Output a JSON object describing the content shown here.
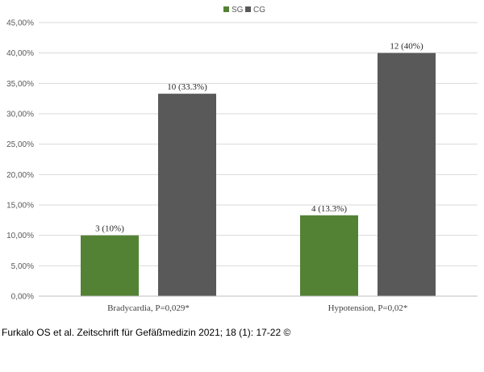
{
  "chart_data": {
    "type": "bar",
    "categories": [
      "Bradycardia, P=0,029*",
      "Hypotension, P=0,02*"
    ],
    "series": [
      {
        "name": "SG",
        "color": "#548235",
        "values": [
          10,
          13.3
        ],
        "labels": [
          "3 (10%)",
          "4 (13.3%)"
        ]
      },
      {
        "name": "CG",
        "color": "#595959",
        "values": [
          33.3,
          40
        ],
        "labels": [
          "10 (33.3%)",
          "12 (40%)"
        ]
      }
    ],
    "ylim": [
      0,
      45
    ],
    "yticks": [
      "0,00%",
      "5,00%",
      "10,00%",
      "15,00%",
      "20,00%",
      "25,00%",
      "30,00%",
      "35,00%",
      "40,00%",
      "45,00%"
    ],
    "grid": true,
    "legend": "top-center",
    "title": "",
    "xlabel": "",
    "ylabel": ""
  },
  "citation": "Furkalo OS et al. Zeitschrift für Gefäßmedizin 2021; 18 (1): 17-22 ©"
}
